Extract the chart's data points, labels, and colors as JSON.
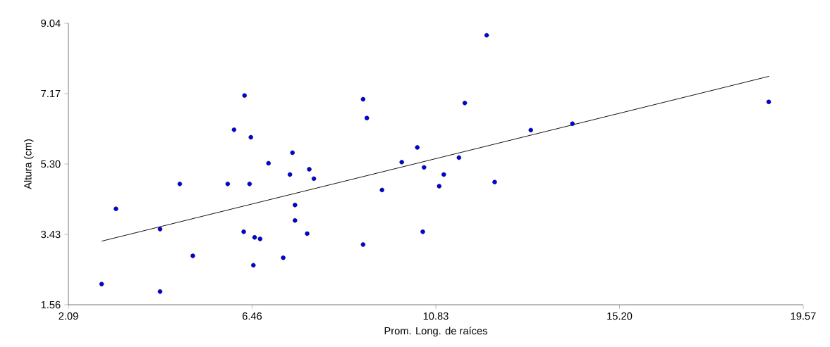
{
  "chart_data": {
    "type": "scatter",
    "xlabel": "Prom. Long. de raíces",
    "ylabel": "Altura (cm)",
    "xlim": [
      2.09,
      19.57
    ],
    "ylim": [
      1.56,
      9.04
    ],
    "xticks": [
      2.09,
      6.46,
      10.83,
      {
        "value": 15.2,
        "label": "15.20"
      },
      19.57
    ],
    "yticks": [
      1.56,
      3.43,
      {
        "value": 5.3,
        "label": "5.30"
      },
      7.17,
      9.04
    ],
    "series": [
      {
        "color": "#0000ee",
        "marker": "circle",
        "x": [
          6.28,
          6.03,
          6.43,
          7.42,
          6.85,
          7.82,
          7.36,
          7.93,
          4.74,
          5.88,
          6.4,
          3.22,
          7.48,
          7.48,
          4.27,
          6.26,
          7.77,
          6.52,
          6.65,
          5.05,
          7.2,
          6.49,
          2.88,
          4.27,
          12.04,
          9.1,
          11.52,
          9.19,
          14.08,
          13.09,
          10.39,
          10.02,
          11.38,
          10.55,
          11.02,
          9.55,
          10.91,
          12.23,
          10.52,
          9.1,
          18.75
        ],
        "values": [
          7.12,
          6.21,
          6.01,
          5.6,
          5.32,
          5.16,
          5.02,
          4.91,
          4.77,
          4.77,
          4.77,
          4.11,
          4.21,
          3.8,
          3.57,
          3.5,
          3.45,
          3.35,
          3.31,
          2.86,
          2.81,
          2.61,
          2.11,
          1.91,
          8.72,
          7.02,
          6.92,
          6.52,
          6.37,
          6.2,
          5.74,
          5.35,
          5.47,
          5.21,
          5.02,
          4.61,
          4.71,
          4.82,
          3.5,
          3.16,
          6.95
        ]
      },
      {
        "type": "line",
        "color": "#000000",
        "marker": "none",
        "x": [
          2.88,
          18.76
        ],
        "values": [
          3.25,
          7.63
        ]
      }
    ]
  }
}
